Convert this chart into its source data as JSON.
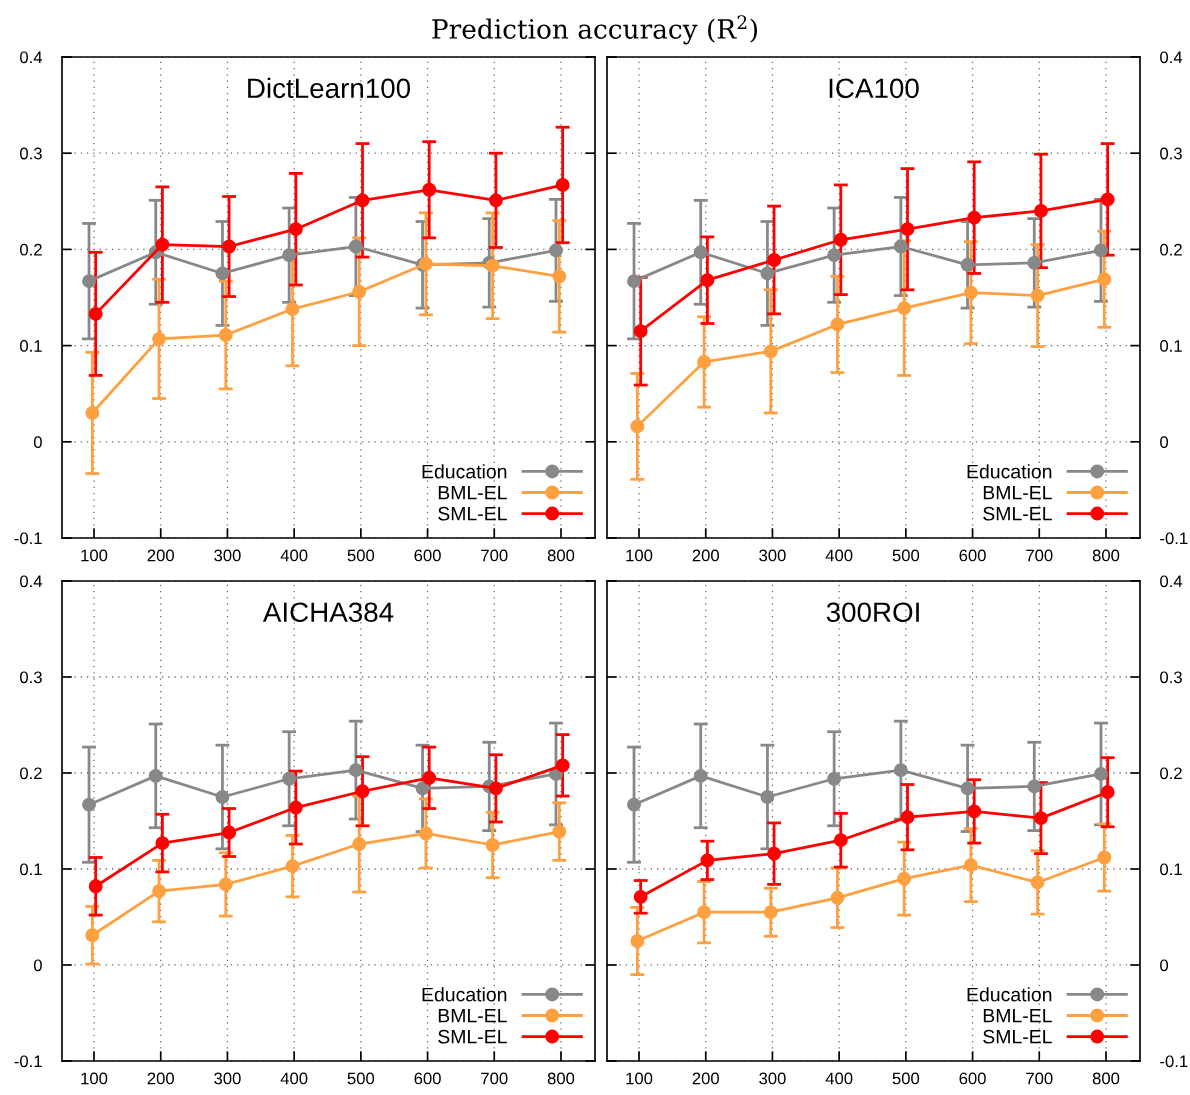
{
  "chart_data": [
    {
      "type": "line",
      "title": "DictLearn100",
      "annotations": [
        "Prediction accuracy (R$^{2}$)"
      ],
      "xlim": [
        52,
        851
      ],
      "xticks": [
        100,
        200,
        300,
        400,
        500,
        600,
        700,
        800
      ],
      "ylim": [
        -0.1,
        0.4
      ],
      "yticks": [
        -0.1,
        0,
        0.1,
        0.2,
        0.3,
        0.4
      ],
      "grid": true,
      "legend": "bottom right",
      "marker": "circle",
      "line_style": "solid",
      "series": [
        {
          "name": "Education",
          "color": "#888888",
          "x": [
            92.5,
            192.5,
            292.5,
            392.5,
            492.5,
            592.5,
            692.5,
            792.5
          ],
          "values": [
            0.167,
            0.197,
            0.175,
            0.194,
            0.203,
            0.184,
            0.186,
            0.199
          ],
          "errors": [
            0.06,
            0.054,
            0.054,
            0.049,
            0.051,
            0.045,
            0.046,
            0.053
          ]
        },
        {
          "name": "BML-EL",
          "color": "#ffa040",
          "x": [
            97.5,
            197.5,
            297.5,
            397.5,
            497.5,
            597.5,
            697.5,
            797.5
          ],
          "values": [
            0.03,
            0.107,
            0.111,
            0.138,
            0.156,
            0.185,
            0.183,
            0.172
          ],
          "errors": [
            0.063,
            0.062,
            0.056,
            0.059,
            0.056,
            0.053,
            0.055,
            0.058
          ]
        },
        {
          "name": "SML-EL",
          "color": "#ff0000",
          "x": [
            102.5,
            202.5,
            302.5,
            402.5,
            502.5,
            602.5,
            702.5,
            802.5
          ],
          "values": [
            0.133,
            0.205,
            0.203,
            0.221,
            0.251,
            0.262,
            0.251,
            0.267
          ],
          "errors": [
            0.064,
            0.06,
            0.052,
            0.058,
            0.059,
            0.05,
            0.049,
            0.06
          ]
        }
      ]
    },
    {
      "type": "line",
      "title": "ICA100",
      "xlim": [
        52,
        851
      ],
      "xticks": [
        100,
        200,
        300,
        400,
        500,
        600,
        700,
        800
      ],
      "ylim": [
        -0.1,
        0.4
      ],
      "yticks": [
        -0.1,
        0,
        0.1,
        0.2,
        0.3,
        0.4
      ],
      "grid": true,
      "legend": "bottom right",
      "marker": "circle",
      "line_style": "solid",
      "series": [
        {
          "name": "Education",
          "color": "#888888",
          "x": [
            92.5,
            192.5,
            292.5,
            392.5,
            492.5,
            592.5,
            692.5,
            792.5
          ],
          "values": [
            0.167,
            0.197,
            0.175,
            0.194,
            0.203,
            0.184,
            0.186,
            0.199
          ],
          "errors": [
            0.06,
            0.054,
            0.054,
            0.049,
            0.051,
            0.045,
            0.046,
            0.053
          ]
        },
        {
          "name": "BML-EL",
          "color": "#ffa040",
          "x": [
            97.5,
            197.5,
            297.5,
            397.5,
            497.5,
            597.5,
            697.5,
            797.5
          ],
          "values": [
            0.016,
            0.083,
            0.094,
            0.122,
            0.139,
            0.155,
            0.152,
            0.169
          ],
          "errors": [
            0.055,
            0.047,
            0.064,
            0.05,
            0.07,
            0.053,
            0.053,
            0.05
          ]
        },
        {
          "name": "SML-EL",
          "color": "#ff0000",
          "x": [
            102.5,
            202.5,
            302.5,
            402.5,
            502.5,
            602.5,
            702.5,
            802.5
          ],
          "values": [
            0.115,
            0.168,
            0.189,
            0.21,
            0.221,
            0.233,
            0.24,
            0.252
          ],
          "errors": [
            0.056,
            0.045,
            0.056,
            0.057,
            0.063,
            0.058,
            0.059,
            0.058
          ]
        }
      ]
    },
    {
      "type": "line",
      "title": "AICHA384",
      "xlim": [
        52,
        851
      ],
      "xticks": [
        100,
        200,
        300,
        400,
        500,
        600,
        700,
        800
      ],
      "ylim": [
        -0.1,
        0.4
      ],
      "yticks": [
        -0.1,
        0,
        0.1,
        0.2,
        0.3,
        0.4
      ],
      "grid": true,
      "legend": "bottom right",
      "marker": "circle",
      "line_style": "solid",
      "series": [
        {
          "name": "Education",
          "color": "#888888",
          "x": [
            92.5,
            192.5,
            292.5,
            392.5,
            492.5,
            592.5,
            692.5,
            792.5
          ],
          "values": [
            0.167,
            0.197,
            0.175,
            0.194,
            0.203,
            0.184,
            0.186,
            0.199
          ],
          "errors": [
            0.06,
            0.054,
            0.054,
            0.049,
            0.051,
            0.045,
            0.046,
            0.053
          ]
        },
        {
          "name": "BML-EL",
          "color": "#ffa040",
          "x": [
            97.5,
            197.5,
            297.5,
            397.5,
            497.5,
            597.5,
            697.5,
            797.5
          ],
          "values": [
            0.031,
            0.077,
            0.084,
            0.103,
            0.126,
            0.137,
            0.125,
            0.139
          ],
          "errors": [
            0.03,
            0.032,
            0.033,
            0.032,
            0.05,
            0.036,
            0.034,
            0.03
          ]
        },
        {
          "name": "SML-EL",
          "color": "#ff0000",
          "x": [
            102.5,
            202.5,
            302.5,
            402.5,
            502.5,
            602.5,
            702.5,
            802.5
          ],
          "values": [
            0.082,
            0.127,
            0.138,
            0.164,
            0.181,
            0.195,
            0.184,
            0.208
          ],
          "errors": [
            0.03,
            0.03,
            0.025,
            0.038,
            0.036,
            0.032,
            0.035,
            0.032
          ]
        }
      ]
    },
    {
      "type": "line",
      "title": "300ROI",
      "xlim": [
        52,
        851
      ],
      "xticks": [
        100,
        200,
        300,
        400,
        500,
        600,
        700,
        800
      ],
      "ylim": [
        -0.1,
        0.4
      ],
      "yticks": [
        -0.1,
        0,
        0.1,
        0.2,
        0.3,
        0.4
      ],
      "grid": true,
      "legend": "bottom right",
      "marker": "circle",
      "line_style": "solid",
      "series": [
        {
          "name": "Education",
          "color": "#888888",
          "x": [
            92.5,
            192.5,
            292.5,
            392.5,
            492.5,
            592.5,
            692.5,
            792.5
          ],
          "values": [
            0.167,
            0.197,
            0.175,
            0.194,
            0.203,
            0.184,
            0.186,
            0.199
          ],
          "errors": [
            0.06,
            0.054,
            0.054,
            0.049,
            0.051,
            0.045,
            0.046,
            0.053
          ]
        },
        {
          "name": "BML-EL",
          "color": "#ffa040",
          "x": [
            97.5,
            197.5,
            297.5,
            397.5,
            497.5,
            597.5,
            697.5,
            797.5
          ],
          "values": [
            0.025,
            0.055,
            0.055,
            0.07,
            0.09,
            0.104,
            0.086,
            0.112
          ],
          "errors": [
            0.035,
            0.032,
            0.025,
            0.031,
            0.038,
            0.038,
            0.033,
            0.035
          ]
        },
        {
          "name": "SML-EL",
          "color": "#ff0000",
          "x": [
            102.5,
            202.5,
            302.5,
            402.5,
            502.5,
            602.5,
            702.5,
            802.5
          ],
          "values": [
            0.071,
            0.109,
            0.116,
            0.13,
            0.154,
            0.16,
            0.153,
            0.18
          ],
          "errors": [
            0.017,
            0.02,
            0.032,
            0.028,
            0.034,
            0.033,
            0.037,
            0.036
          ]
        }
      ]
    }
  ]
}
